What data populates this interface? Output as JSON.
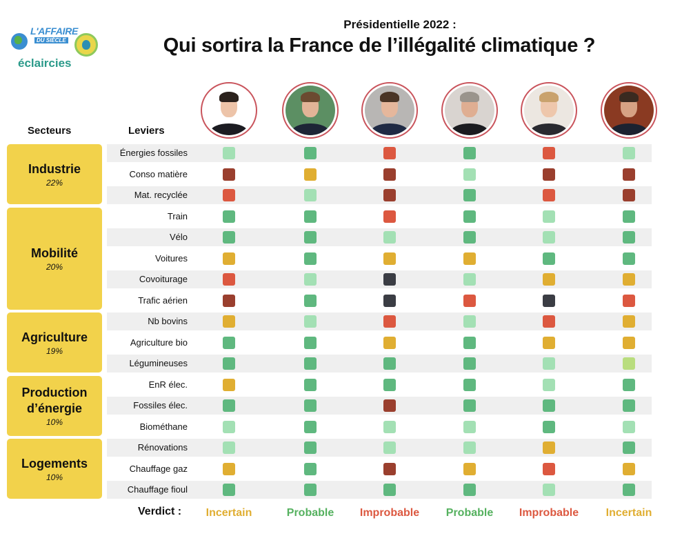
{
  "logo": {
    "line1": "L'AFFAIRE",
    "line2": "DU SIÈCLE",
    "line3": "éclaircies"
  },
  "header": {
    "subtitle": "Présidentielle 2022 :",
    "title": "Qui sortira la France de l’illégalité climatique ?"
  },
  "columns": {
    "sectors": "Secteurs",
    "levers": "Leviers"
  },
  "colors": {
    "G": "#5fb87f",
    "L": "#a3e0b4",
    "Y": "#e0ae32",
    "R": "#dc5840",
    "D": "#9a3f2e",
    "K": "#3b3d44",
    "C": "#b9dd7e",
    "accent": "#f2d24b"
  },
  "candidates": [
    {
      "portrait": "portrait-1",
      "bg": "#ffffff",
      "skin": "#edc4a9",
      "hair": "#2b221d",
      "clothes": "#1c1c22"
    },
    {
      "portrait": "portrait-2",
      "bg": "#5c8f63",
      "skin": "#e2b497",
      "hair": "#6b4a30",
      "clothes": "#1d2536"
    },
    {
      "portrait": "portrait-3",
      "bg": "#b8b6b4",
      "skin": "#e5b79c",
      "hair": "#4a3526",
      "clothes": "#1f2a44"
    },
    {
      "portrait": "portrait-4",
      "bg": "#d9d4d0",
      "skin": "#dfae92",
      "hair": "#9a948c",
      "clothes": "#1b1b1f"
    },
    {
      "portrait": "portrait-5",
      "bg": "#ece7e1",
      "skin": "#eec7ac",
      "hair": "#c9a26d",
      "clothes": "#2a2a30"
    },
    {
      "portrait": "portrait-6",
      "bg": "#8a3a22",
      "skin": "#d6a284",
      "hair": "#3a2a20",
      "clothes": "#1c2230"
    }
  ],
  "sectors": [
    {
      "name": "Industrie",
      "pct": "22%"
    },
    {
      "name": "Mobilité",
      "pct": "20%"
    },
    {
      "name": "Agriculture",
      "pct": "19%"
    },
    {
      "name": "Production d’énergie",
      "pct": "10%"
    },
    {
      "name": "Logements",
      "pct": "10%"
    }
  ],
  "rows": [
    {
      "lever": "Énergies fossiles",
      "sector": 0,
      "cells": [
        "L",
        "G",
        "R",
        "G",
        "R",
        "L"
      ]
    },
    {
      "lever": "Conso matière",
      "sector": 0,
      "cells": [
        "D",
        "Y",
        "D",
        "L",
        "D",
        "D"
      ]
    },
    {
      "lever": "Mat. recyclée",
      "sector": 0,
      "cells": [
        "R",
        "L",
        "D",
        "G",
        "R",
        "D"
      ]
    },
    {
      "lever": "Train",
      "sector": 1,
      "cells": [
        "G",
        "G",
        "R",
        "G",
        "L",
        "G"
      ]
    },
    {
      "lever": "Vélo",
      "sector": 1,
      "cells": [
        "G",
        "G",
        "L",
        "G",
        "L",
        "G"
      ]
    },
    {
      "lever": "Voitures",
      "sector": 1,
      "cells": [
        "Y",
        "G",
        "Y",
        "Y",
        "G",
        "G"
      ]
    },
    {
      "lever": "Covoiturage",
      "sector": 1,
      "cells": [
        "R",
        "L",
        "K",
        "L",
        "Y",
        "Y"
      ]
    },
    {
      "lever": "Trafic aérien",
      "sector": 1,
      "cells": [
        "D",
        "G",
        "K",
        "R",
        "K",
        "R"
      ]
    },
    {
      "lever": "Nb bovins",
      "sector": 2,
      "cells": [
        "Y",
        "L",
        "R",
        "L",
        "R",
        "Y"
      ]
    },
    {
      "lever": "Agriculture bio",
      "sector": 2,
      "cells": [
        "G",
        "G",
        "Y",
        "G",
        "Y",
        "Y"
      ]
    },
    {
      "lever": "Légumineuses",
      "sector": 2,
      "cells": [
        "G",
        "G",
        "G",
        "G",
        "L",
        "C"
      ]
    },
    {
      "lever": "EnR élec.",
      "sector": 3,
      "cells": [
        "Y",
        "G",
        "G",
        "G",
        "L",
        "G"
      ]
    },
    {
      "lever": "Fossiles élec.",
      "sector": 3,
      "cells": [
        "G",
        "G",
        "D",
        "G",
        "G",
        "G"
      ]
    },
    {
      "lever": "Biométhane",
      "sector": 3,
      "cells": [
        "L",
        "G",
        "L",
        "L",
        "G",
        "L"
      ]
    },
    {
      "lever": "Rénovations",
      "sector": 4,
      "cells": [
        "L",
        "G",
        "L",
        "L",
        "Y",
        "G"
      ]
    },
    {
      "lever": "Chauffage gaz",
      "sector": 4,
      "cells": [
        "Y",
        "G",
        "D",
        "Y",
        "R",
        "Y"
      ]
    },
    {
      "lever": "Chauffage fioul",
      "sector": 4,
      "cells": [
        "G",
        "G",
        "G",
        "G",
        "L",
        "G"
      ]
    }
  ],
  "verdict": {
    "label": "Verdict :",
    "items": [
      {
        "text": "Incertain",
        "color": "#e0ae32"
      },
      {
        "text": "Probable",
        "color": "#55b15f"
      },
      {
        "text": "Improbable",
        "color": "#dc5840"
      },
      {
        "text": "Probable",
        "color": "#55b15f"
      },
      {
        "text": "Improbable",
        "color": "#dc5840"
      },
      {
        "text": "Incertain",
        "color": "#e0ae32"
      }
    ]
  }
}
